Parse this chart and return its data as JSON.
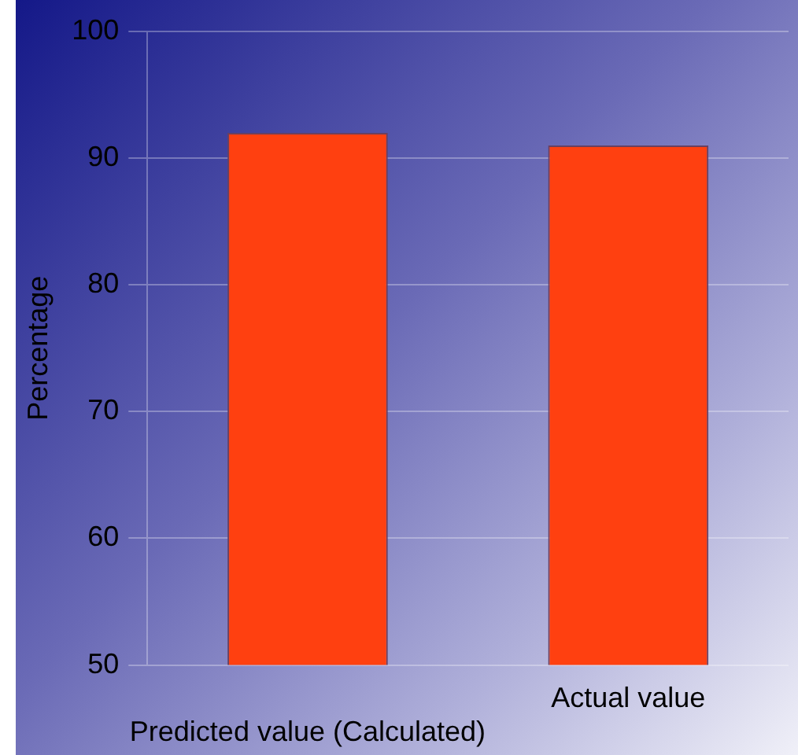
{
  "chart_data": {
    "type": "bar",
    "ylabel": "Percentage",
    "categories": [
      "Predicted value (Calculated)",
      "Actual value"
    ],
    "values": [
      92,
      91
    ],
    "color": "#ff4010",
    "ylim": [
      50,
      100
    ],
    "yticks": [
      50,
      60,
      70,
      80,
      90,
      100
    ],
    "grid": "y"
  }
}
